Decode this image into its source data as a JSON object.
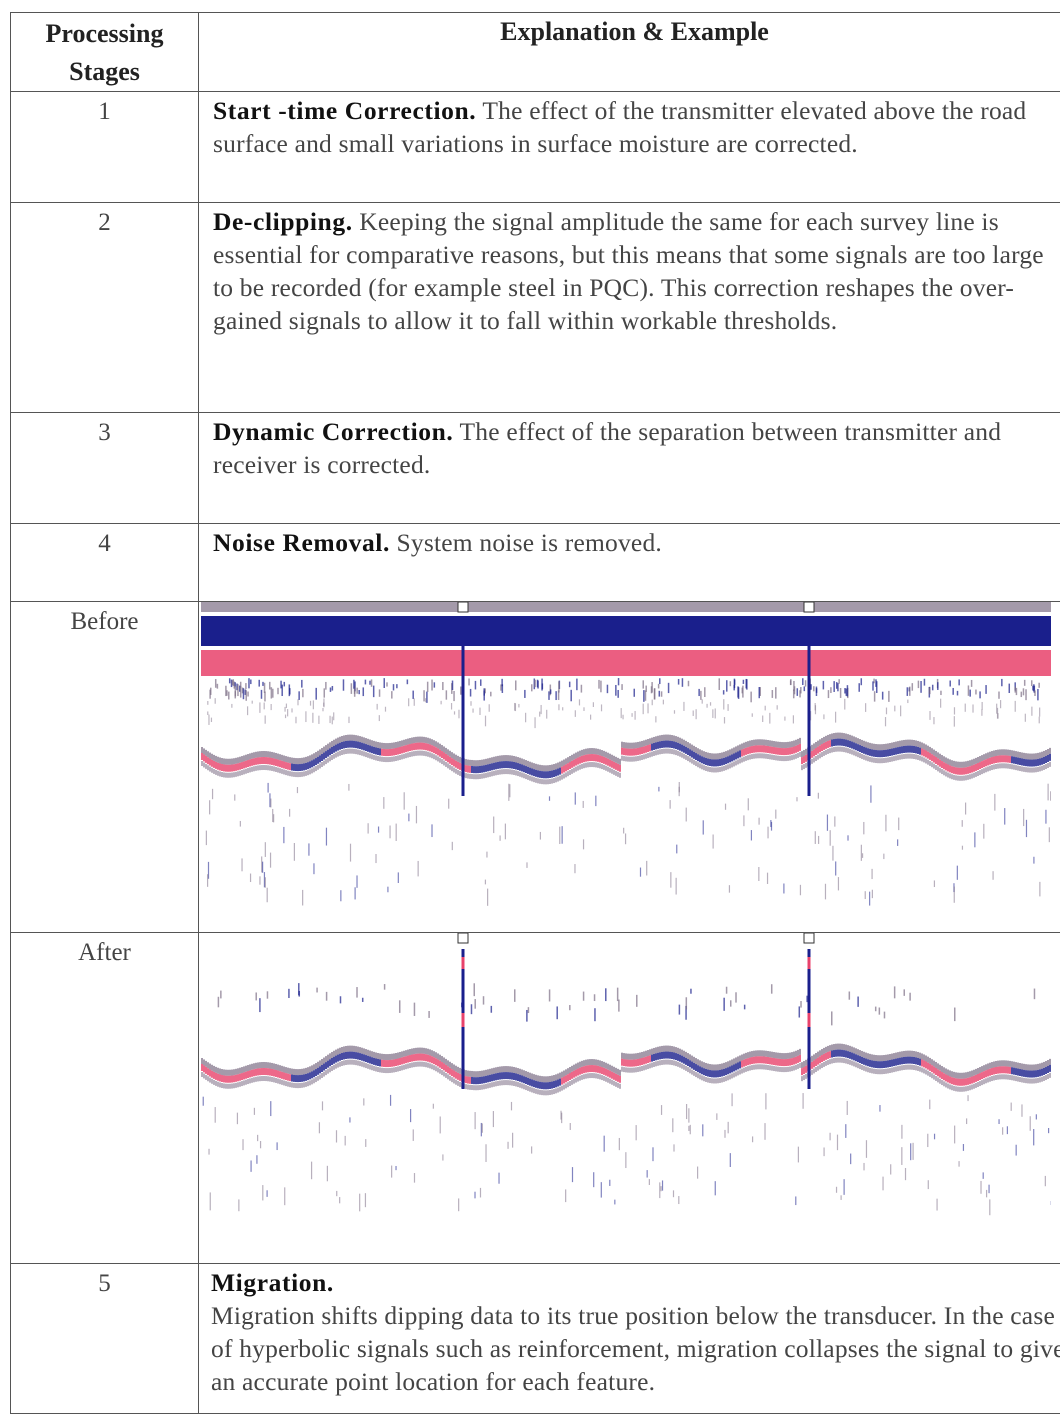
{
  "header": {
    "col1": "Processing Stages",
    "col1_line1": "Processing",
    "col1_line2": "Stages",
    "col2": "Explanation & Example"
  },
  "rows": [
    {
      "stage": "1",
      "title": "Start -time Correction.",
      "text": "The effect of the transmitter elevated above the road surface and small variations in surface moisture are corrected."
    },
    {
      "stage": "2",
      "title": "De-clipping.",
      "text": "Keeping the signal amplitude the same for each survey line is essential for comparative reasons, but this means that some signals are too large to be recorded (for example steel in PQC). This correction reshapes the over-gained signals to allow it to fall within workable thresholds."
    },
    {
      "stage": "3",
      "title": "Dynamic Correction.",
      "text": "The effect of the separation between transmitter and receiver is corrected."
    },
    {
      "stage": "4",
      "title": "Noise Removal.",
      "text": "System noise is removed."
    },
    {
      "stage": "5",
      "title": "Migration.",
      "text": "Migration shifts dipping data to its true position below the transducer. In the case of hyperbolic signals such as reinforcement, migration collapses the signal to give an accurate point location for each feature."
    }
  ],
  "images": [
    {
      "label": "Before",
      "name": "gpr-radargram-before"
    },
    {
      "label": "After",
      "name": "gpr-radargram-after"
    }
  ],
  "colors": {
    "blue": "#1a1f8c",
    "red": "#e8426b",
    "grey": "#7d6f86"
  }
}
